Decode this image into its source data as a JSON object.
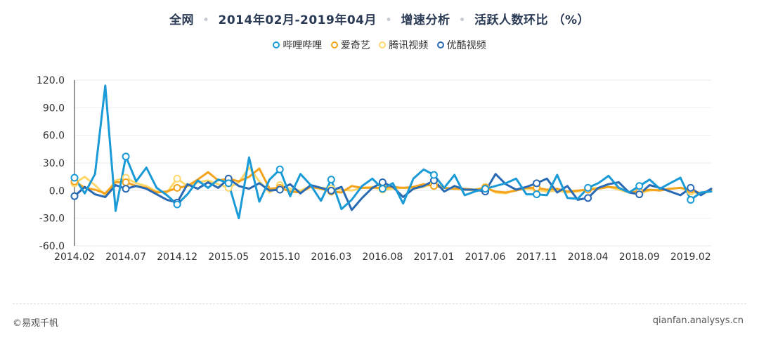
{
  "title": {
    "part1": "全网",
    "part2": "2014年02月-2019年04月",
    "part3": "增速分析",
    "part4": "活跃人数环比 （%）"
  },
  "footer": {
    "left": "©易观千帆",
    "right": "qianfan.analysys.cn"
  },
  "colors": {
    "bilibili": "#1a9ad6",
    "iqiyi": "#f4a31c",
    "tencent": "#ffd86b",
    "youku": "#2a6ab4",
    "grid": "#eeeeee",
    "axis": "#333333"
  },
  "chart_data": {
    "type": "line",
    "x": [
      "2014.02",
      "2014.03",
      "2014.04",
      "2014.05",
      "2014.06",
      "2014.07",
      "2014.08",
      "2014.09",
      "2014.10",
      "2014.11",
      "2014.12",
      "2015.01",
      "2015.02",
      "2015.03",
      "2015.04",
      "2015.05",
      "2015.06",
      "2015.07",
      "2015.08",
      "2015.09",
      "2015.10",
      "2015.11",
      "2015.12",
      "2016.01",
      "2016.02",
      "2016.03",
      "2016.04",
      "2016.05",
      "2016.06",
      "2016.07",
      "2016.08",
      "2016.09",
      "2016.10",
      "2016.11",
      "2016.12",
      "2017.01",
      "2017.02",
      "2017.03",
      "2017.04",
      "2017.05",
      "2017.06",
      "2017.07",
      "2017.08",
      "2017.09",
      "2017.10",
      "2017.11",
      "2017.12",
      "2018.01",
      "2018.02",
      "2018.03",
      "2018.04",
      "2018.05",
      "2018.06",
      "2018.07",
      "2018.08",
      "2018.09",
      "2018.10",
      "2018.11",
      "2018.12",
      "2019.01",
      "2019.02",
      "2019.03",
      "2019.04"
    ],
    "x_tick_labels": [
      "2014.02",
      "2014.07",
      "2014.12",
      "2015.05",
      "2015.10",
      "2016.03",
      "2016.08",
      "2017.01",
      "2017.06",
      "2017.11",
      "2018.04",
      "2018.09",
      "2019.02"
    ],
    "ylim": [
      -60,
      120
    ],
    "y_ticks": [
      "120.0",
      "90.0",
      "60.0",
      "30.0",
      "0.0",
      "-30.0",
      "-60.0"
    ],
    "series": [
      {
        "name": "哔哩哔哩",
        "values": [
          14,
          -3,
          18,
          114,
          -22,
          37,
          10,
          25,
          3,
          -5,
          -15,
          -4,
          11,
          3,
          12,
          8,
          -30,
          36,
          -12,
          12,
          23,
          -6,
          18,
          6,
          -11,
          12,
          -20,
          -10,
          5,
          13,
          2,
          8,
          -14,
          13,
          23,
          17,
          3,
          17,
          -5,
          -1,
          2,
          5,
          8,
          13,
          -4,
          -4,
          -5,
          17,
          -8,
          -9,
          3,
          8,
          16,
          3,
          -2,
          5,
          12,
          2,
          8,
          14,
          -10,
          -2,
          -1
        ]
      },
      {
        "name": "爱奇艺",
        "values": [
          10,
          3,
          1,
          -3,
          9,
          9,
          5,
          3,
          -2,
          -1,
          3,
          5,
          12,
          20,
          11,
          13,
          10,
          15,
          24,
          2,
          3,
          -1,
          -2,
          4,
          2,
          -1,
          -2,
          5,
          3,
          3,
          3,
          4,
          3,
          4,
          7,
          5,
          3,
          2,
          2,
          1,
          3,
          -1,
          -2,
          0,
          3,
          3,
          1,
          2,
          -1,
          0,
          1,
          2,
          4,
          3,
          -2,
          -1,
          1,
          0,
          2,
          3,
          1,
          -3,
          1
        ]
      },
      {
        "name": "腾讯视频",
        "values": [
          8,
          15,
          6,
          -5,
          11,
          14,
          8,
          5,
          -1,
          -2,
          13,
          5,
          9,
          11,
          7,
          3,
          9,
          25,
          10,
          -2,
          6,
          2,
          0,
          5,
          3,
          2,
          1,
          0,
          3,
          4,
          1,
          2,
          3,
          2,
          4,
          8,
          3,
          2,
          1,
          0,
          4,
          -2,
          -3,
          1,
          2,
          1,
          -1,
          0,
          -2,
          -1,
          2,
          3,
          4,
          1,
          -2,
          -3,
          0,
          1,
          2,
          3,
          -1,
          -4,
          0
        ]
      },
      {
        "name": "优酷视频",
        "values": [
          -6,
          4,
          -4,
          -7,
          6,
          2,
          5,
          2,
          -4,
          -10,
          -13,
          7,
          2,
          9,
          3,
          13,
          5,
          2,
          8,
          0,
          1,
          7,
          -3,
          6,
          3,
          0,
          4,
          -21,
          -8,
          3,
          9,
          4,
          -7,
          2,
          5,
          11,
          -1,
          5,
          1,
          1,
          -1,
          18,
          7,
          1,
          4,
          8,
          13,
          -2,
          5,
          -10,
          -8,
          3,
          7,
          9,
          -2,
          -4,
          6,
          3,
          -1,
          -5,
          3,
          -5,
          2
        ]
      }
    ]
  }
}
